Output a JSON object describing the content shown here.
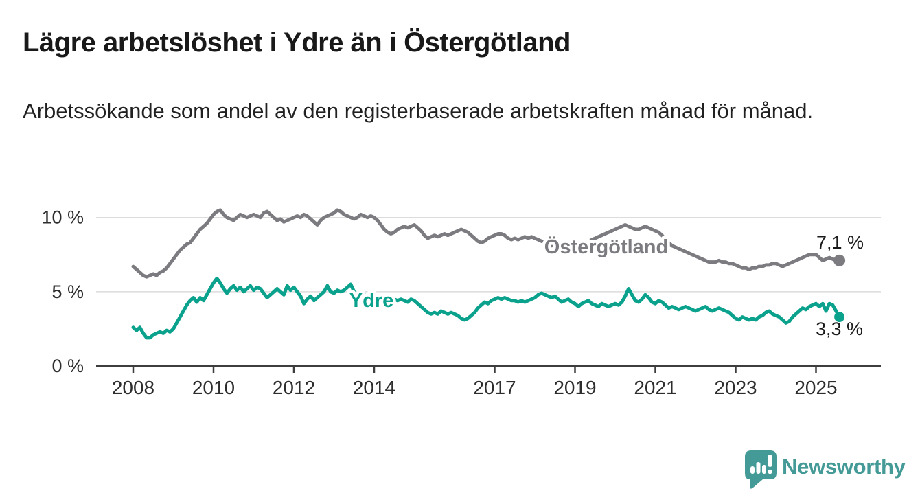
{
  "chart_data": {
    "type": "line",
    "title": "Lägre arbetslöshet i Ydre än i Östergötland",
    "subtitle": "Arbetssökande som andel av den registerbaserade arbetskraften månad för månad.",
    "x_start_year": 2008,
    "interval_months": 1,
    "xlim": [
      2007.1,
      2026.6
    ],
    "ylim": [
      0,
      11.2
    ],
    "grid": "horizontal-only",
    "xticks": [
      2008,
      2010,
      2012,
      2014,
      2017,
      2019,
      2021,
      2023,
      2025
    ],
    "yticks": [
      {
        "label": "0 %",
        "value": 0
      },
      {
        "label": "5 %",
        "value": 5
      },
      {
        "label": "10 %",
        "value": 10
      }
    ],
    "series": [
      {
        "name": "Östergötland",
        "color": "#7b7b80",
        "end_label": "7,1 %",
        "end_value": 7.1,
        "values": [
          6.7,
          6.5,
          6.3,
          6.1,
          6.0,
          6.1,
          6.2,
          6.1,
          6.3,
          6.4,
          6.6,
          6.9,
          7.2,
          7.5,
          7.8,
          8.0,
          8.2,
          8.3,
          8.6,
          8.9,
          9.2,
          9.4,
          9.6,
          9.9,
          10.2,
          10.4,
          10.5,
          10.2,
          10.0,
          9.9,
          9.8,
          10.0,
          10.2,
          10.1,
          10.0,
          10.1,
          10.2,
          10.1,
          10.0,
          10.3,
          10.4,
          10.2,
          10.0,
          9.8,
          9.9,
          9.7,
          9.8,
          9.9,
          10.0,
          10.1,
          10.0,
          10.2,
          10.1,
          9.9,
          9.7,
          9.5,
          9.8,
          10.0,
          10.1,
          10.2,
          10.3,
          10.5,
          10.4,
          10.2,
          10.1,
          10.0,
          9.9,
          10.0,
          10.2,
          10.1,
          10.0,
          10.1,
          10.0,
          9.8,
          9.5,
          9.2,
          9.0,
          8.9,
          9.0,
          9.2,
          9.3,
          9.4,
          9.3,
          9.4,
          9.5,
          9.3,
          9.1,
          8.8,
          8.6,
          8.7,
          8.8,
          8.7,
          8.8,
          8.9,
          8.8,
          8.9,
          9.0,
          9.1,
          9.2,
          9.1,
          9.0,
          8.8,
          8.6,
          8.4,
          8.3,
          8.4,
          8.6,
          8.7,
          8.8,
          8.9,
          8.9,
          8.8,
          8.6,
          8.5,
          8.6,
          8.5,
          8.6,
          8.7,
          8.6,
          8.7,
          8.6,
          8.5,
          8.4,
          8.3,
          8.2,
          8.1,
          8.2,
          8.1,
          8.0,
          8.1,
          8.0,
          8.0,
          7.9,
          8.0,
          8.1,
          8.2,
          8.3,
          8.5,
          8.6,
          8.7,
          8.8,
          8.9,
          9.0,
          9.1,
          9.2,
          9.3,
          9.4,
          9.5,
          9.4,
          9.3,
          9.2,
          9.2,
          9.3,
          9.4,
          9.3,
          9.2,
          9.1,
          9.0,
          8.8,
          8.5,
          8.3,
          8.1,
          8.0,
          7.9,
          7.8,
          7.7,
          7.6,
          7.5,
          7.4,
          7.3,
          7.2,
          7.1,
          7.0,
          7.0,
          7.0,
          7.1,
          7.0,
          7.0,
          6.9,
          6.9,
          6.8,
          6.7,
          6.6,
          6.6,
          6.5,
          6.6,
          6.6,
          6.7,
          6.7,
          6.8,
          6.8,
          6.9,
          6.9,
          6.8,
          6.7,
          6.8,
          6.9,
          7.0,
          7.1,
          7.2,
          7.3,
          7.4,
          7.5,
          7.5,
          7.5,
          7.3,
          7.1,
          7.2,
          7.3,
          7.2,
          7.1,
          7.1
        ]
      },
      {
        "name": "Ydre",
        "color": "#0aa18d",
        "end_label": "3,3 %",
        "end_value": 3.3,
        "values": [
          2.6,
          2.4,
          2.6,
          2.2,
          1.9,
          1.9,
          2.1,
          2.2,
          2.3,
          2.2,
          2.4,
          2.3,
          2.5,
          2.9,
          3.3,
          3.7,
          4.1,
          4.4,
          4.6,
          4.3,
          4.6,
          4.4,
          4.8,
          5.2,
          5.6,
          5.9,
          5.6,
          5.2,
          4.9,
          5.2,
          5.4,
          5.1,
          5.3,
          5.0,
          5.2,
          5.4,
          5.1,
          5.3,
          5.2,
          4.9,
          4.6,
          4.8,
          5.0,
          5.2,
          5.0,
          4.8,
          5.4,
          5.1,
          5.3,
          5.0,
          4.7,
          4.2,
          4.5,
          4.7,
          4.4,
          4.6,
          4.8,
          5.0,
          5.4,
          5.0,
          4.9,
          5.1,
          5.0,
          5.1,
          5.3,
          5.5,
          5.0,
          4.8,
          4.9,
          4.8,
          4.7,
          4.9,
          4.8,
          4.7,
          4.6,
          4.7,
          4.6,
          4.6,
          4.5,
          4.4,
          4.5,
          4.4,
          4.3,
          4.5,
          4.4,
          4.2,
          4.0,
          3.8,
          3.6,
          3.5,
          3.6,
          3.5,
          3.7,
          3.6,
          3.5,
          3.6,
          3.5,
          3.4,
          3.2,
          3.1,
          3.2,
          3.4,
          3.6,
          3.9,
          4.1,
          4.3,
          4.2,
          4.4,
          4.5,
          4.6,
          4.5,
          4.6,
          4.5,
          4.4,
          4.4,
          4.3,
          4.4,
          4.3,
          4.4,
          4.5,
          4.6,
          4.8,
          4.9,
          4.8,
          4.7,
          4.6,
          4.7,
          4.5,
          4.3,
          4.4,
          4.5,
          4.3,
          4.2,
          4.0,
          4.2,
          4.3,
          4.4,
          4.2,
          4.1,
          4.0,
          4.2,
          4.1,
          4.0,
          4.1,
          4.2,
          4.1,
          4.3,
          4.7,
          5.2,
          4.8,
          4.4,
          4.3,
          4.5,
          4.8,
          4.6,
          4.3,
          4.2,
          4.4,
          4.3,
          4.1,
          3.9,
          4.0,
          3.9,
          3.8,
          3.9,
          4.0,
          3.9,
          3.8,
          3.7,
          3.8,
          3.9,
          4.0,
          3.8,
          3.7,
          3.8,
          3.9,
          3.8,
          3.7,
          3.6,
          3.4,
          3.2,
          3.1,
          3.3,
          3.2,
          3.1,
          3.2,
          3.1,
          3.3,
          3.4,
          3.6,
          3.7,
          3.5,
          3.4,
          3.3,
          3.1,
          2.9,
          3.0,
          3.3,
          3.5,
          3.7,
          3.9,
          3.8,
          4.0,
          4.1,
          4.2,
          4.0,
          4.2,
          3.7,
          4.2,
          4.1,
          3.7,
          3.3
        ]
      }
    ],
    "legend_position": "inline-labels-on-lines"
  },
  "axis_colors": {
    "baseline": "#3d3d3d",
    "gridline": "#dcdcdc",
    "tick_text": "#2d2d2d"
  },
  "branding": {
    "logo_text": "Newsworthy",
    "logo_color": "#449a96"
  }
}
